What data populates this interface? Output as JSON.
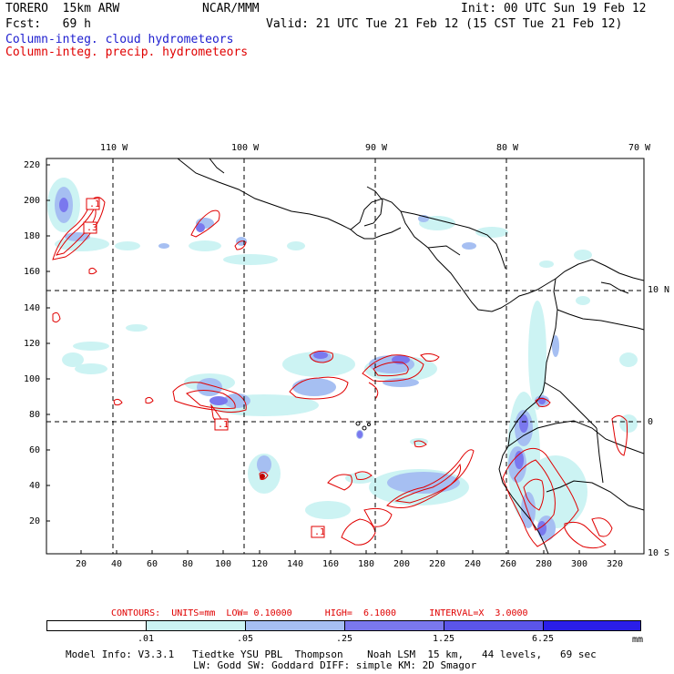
{
  "header": {
    "model": "TORERO  15km ARW",
    "center": "NCAR/MMM",
    "init": "Init: 00 UTC Sun 19 Feb 12",
    "fcst": "Fcst:   69 h",
    "valid": "Valid: 21 UTC Tue 21 Feb 12 (15 CST Tue 21 Feb 12)"
  },
  "legend_titles": {
    "cloud": "Column-integ. cloud hydrometeors",
    "precip": "Column-integ. precip. hydrometeors"
  },
  "top_lon_labels": [
    "110 W",
    "100 W",
    "90 W",
    "80 W",
    "70 W"
  ],
  "right_lat_labels": [
    "10 N",
    "0",
    "10 S"
  ],
  "y_ticks": [
    "220",
    "200",
    "180",
    "160",
    "140",
    "120",
    "100",
    "80",
    "60",
    "40",
    "20"
  ],
  "x_ticks": [
    "20",
    "40",
    "60",
    "80",
    "100",
    "120",
    "140",
    "160",
    "180",
    "200",
    "220",
    "240",
    "260",
    "280",
    "300",
    "320"
  ],
  "contour_labels": [
    ".1",
    ".3",
    ".1",
    ".1"
  ],
  "contours_line": "CONTOURS:  UNITS=mm  LOW= 0.10000      HIGH=  6.1000      INTERVAL=X  3.0000",
  "colorbar": {
    "labels": [
      ".01",
      ".05",
      ".25",
      "1.25",
      "6.25"
    ],
    "units": "mm",
    "colors": [
      "#ffffff",
      "#ccf3f3",
      "#a6bff2",
      "#7a78ee",
      "#5b55ea",
      "#2a1ee8"
    ]
  },
  "footer": {
    "line1": "Model Info: V3.3.1   Tiedtke YSU PBL  Thompson    Noah LSM  15 km,   44 levels,   69 sec",
    "line2": "LW: Godd SW: Goddard DIFF: simple KM: 2D Smagor"
  },
  "colors": {
    "cloud": "#2020d0",
    "precip": "#e00000"
  }
}
